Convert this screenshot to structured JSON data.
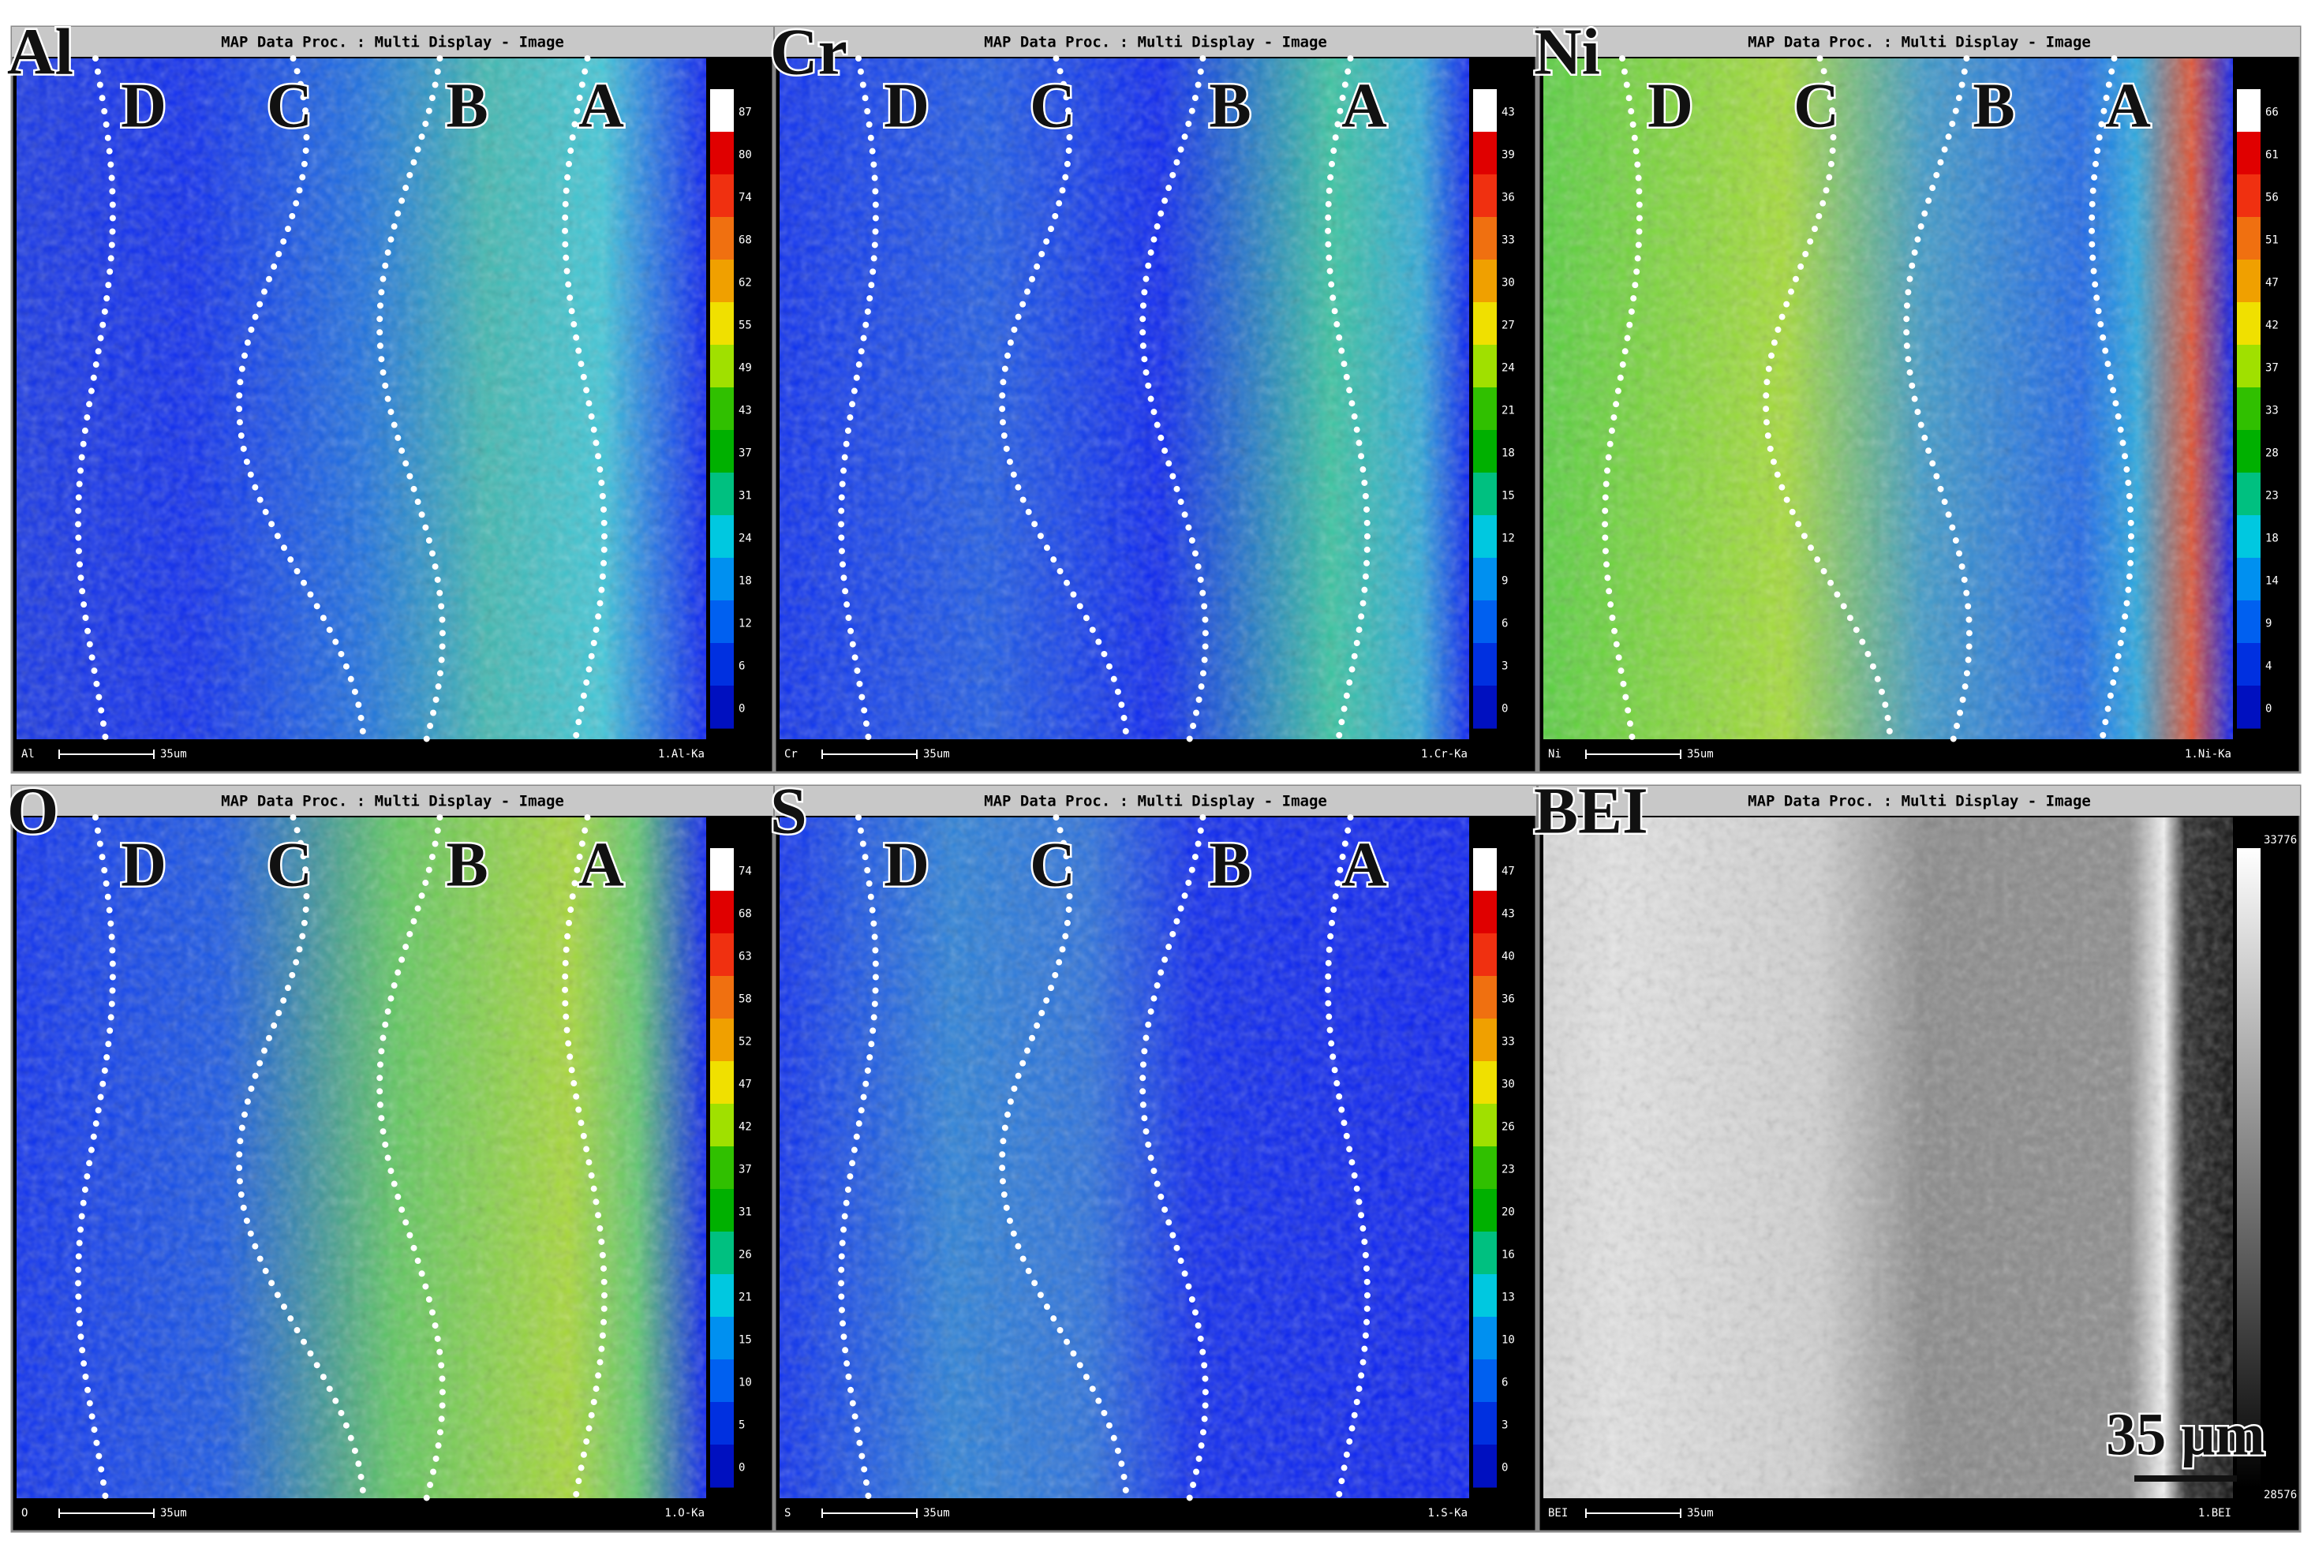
{
  "panels": [
    {
      "element": "Al",
      "title": "MAP Data Proc. : Multi Display - Image",
      "zones": [
        "D",
        "C",
        "B",
        "A"
      ],
      "scale_values": [
        87,
        80,
        74,
        68,
        62,
        55,
        49,
        43,
        37,
        31,
        24,
        18,
        12,
        6,
        0
      ],
      "footer_left": "Al",
      "scale_bar": "35um",
      "footer_right": "1.Al-Ka"
    },
    {
      "element": "Cr",
      "title": "MAP Data Proc. : Multi Display - Image",
      "zones": [
        "D",
        "C",
        "B",
        "A"
      ],
      "scale_values": [
        43,
        39,
        36,
        33,
        30,
        27,
        24,
        21,
        18,
        15,
        12,
        9,
        6,
        3,
        0
      ],
      "footer_left": "Cr",
      "scale_bar": "35um",
      "footer_right": "1.Cr-Ka"
    },
    {
      "element": "Ni",
      "title": "MAP Data Proc. : Multi Display - Image",
      "zones": [
        "D",
        "C",
        "B",
        "A"
      ],
      "scale_values": [
        66,
        61,
        56,
        51,
        47,
        42,
        37,
        33,
        28,
        23,
        18,
        14,
        9,
        4,
        0
      ],
      "footer_left": "Ni",
      "scale_bar": "35um",
      "footer_right": "1.Ni-Ka"
    },
    {
      "element": "O",
      "title": "MAP Data Proc. : Multi Display - Image",
      "zones": [
        "D",
        "C",
        "B",
        "A"
      ],
      "scale_values": [
        74,
        68,
        63,
        58,
        52,
        47,
        42,
        37,
        31,
        26,
        21,
        15,
        10,
        5,
        0
      ],
      "footer_left": "O",
      "scale_bar": "35um",
      "footer_right": "1.O-Ka"
    },
    {
      "element": "S",
      "title": "MAP Data Proc. : Multi Display - Image",
      "zones": [
        "D",
        "C",
        "B",
        "A"
      ],
      "scale_values": [
        47,
        43,
        40,
        36,
        33,
        30,
        26,
        23,
        20,
        16,
        13,
        10,
        6,
        3,
        0
      ],
      "footer_left": "S",
      "scale_bar": "35um",
      "footer_right": "1.S-Ka"
    },
    {
      "element": "BEI",
      "title": "MAP Data Proc. : Multi Display - Image",
      "scale_values": [
        33776,
        28576
      ],
      "footer_left": "BEI",
      "scale_bar": "35um",
      "footer_right": "1.BEI"
    }
  ],
  "scale_annotation": "35 μm"
}
